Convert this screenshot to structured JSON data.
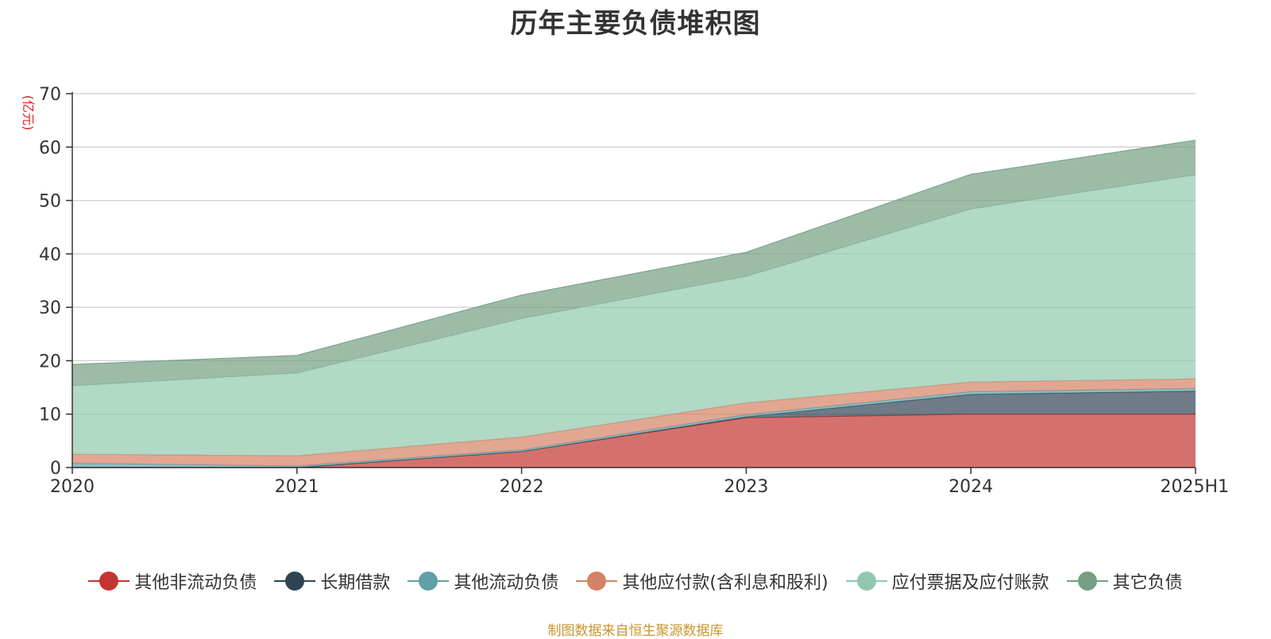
{
  "title": "历年主要负债堆积图",
  "source_note": "制图数据来自恒生聚源数据库",
  "chart_data": {
    "type": "area",
    "stacked": true,
    "categories": [
      "2020",
      "2021",
      "2022",
      "2023",
      "2024",
      "2025H1"
    ],
    "ylabel": "(亿元)",
    "ylim": [
      0,
      70
    ],
    "yticks": [
      0,
      10,
      20,
      30,
      40,
      50,
      60,
      70
    ],
    "grid": true,
    "legend_position": "bottom",
    "series": [
      {
        "name": "其他非流动负债",
        "color": "#c23531",
        "values": [
          0,
          0,
          3,
          9.3,
          10,
          10
        ]
      },
      {
        "name": "长期借款",
        "color": "#2f4554",
        "values": [
          0,
          0,
          0,
          0.2,
          3.7,
          4.3
        ]
      },
      {
        "name": "其他流动负债",
        "color": "#61a0a8",
        "values": [
          0.8,
          0.3,
          0.3,
          0.4,
          0.5,
          0.5
        ]
      },
      {
        "name": "其他应付款(含利息和股利)",
        "color": "#d48265",
        "values": [
          1.7,
          1.9,
          2.4,
          2.2,
          1.8,
          1.8
        ]
      },
      {
        "name": "应付票据及应付账款",
        "color": "#91c7ae",
        "values": [
          12.8,
          15.5,
          22.2,
          23.7,
          32.4,
          38.2
        ]
      },
      {
        "name": "其它负债",
        "color": "#749f83",
        "values": [
          4,
          3.3,
          4.4,
          4.5,
          6.5,
          6.5
        ]
      }
    ]
  }
}
